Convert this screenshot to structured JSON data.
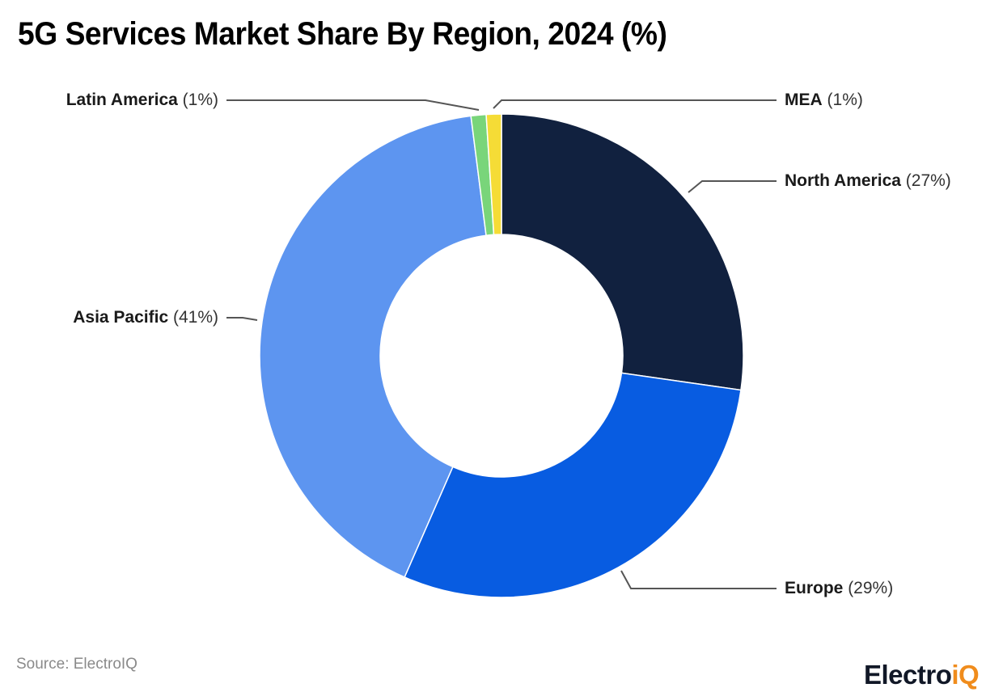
{
  "title": "5G Services Market Share By Region, 2024 (%)",
  "source": "Source: ElectroIQ",
  "logo": {
    "main": "Electro",
    "accent": "iQ"
  },
  "chart_data": {
    "type": "pie",
    "variant": "donut",
    "title": "5G Services Market Share By Region, 2024 (%)",
    "unit": "%",
    "categories": [
      "North America",
      "Europe",
      "Asia Pacific",
      "Latin America",
      "MEA"
    ],
    "values": [
      27,
      29,
      41,
      1,
      1
    ],
    "colors": [
      "#11213f",
      "#085ce1",
      "#5d95f0",
      "#79d57a",
      "#f5dc36"
    ],
    "labels": [
      {
        "name": "North America",
        "pct": "(27%)"
      },
      {
        "name": "Europe",
        "pct": "(29%)"
      },
      {
        "name": "Asia Pacific",
        "pct": "(41%)"
      },
      {
        "name": "Latin America",
        "pct": "(1%)"
      },
      {
        "name": "MEA",
        "pct": "(1%)"
      }
    ],
    "start_angle": "top, clockwise",
    "legend": "none (direct leader-line labels)"
  }
}
